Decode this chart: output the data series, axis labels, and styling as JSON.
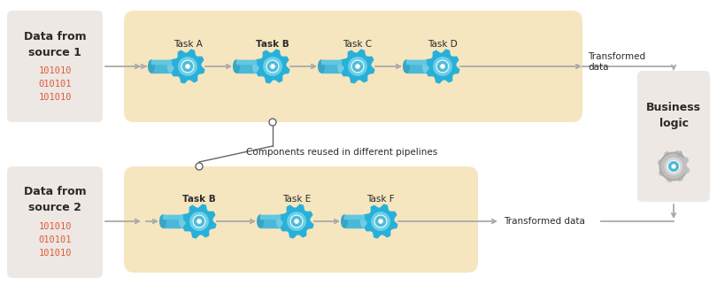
{
  "bg_color": "#ffffff",
  "source_box_color": "#ede8e3",
  "pipeline_box_color": "#f5e6c0",
  "business_box_color": "#ede8e3",
  "pipe_color": "#4db8d4",
  "gear_color": "#29b0d8",
  "arrow_color": "#aaaaaa",
  "text_color_dark": "#2a2a2a",
  "text_color_red": "#e05a3a",
  "source1_title": "Data from\nsource 1",
  "source2_title": "Data from\nsource 2",
  "source1_data": "101010\n010101\n101010",
  "source2_data": "101010\n010101\n101010",
  "business_title": "Business\nlogic",
  "pipeline1_tasks": [
    "Task A",
    "Task B",
    "Task C",
    "Task D"
  ],
  "pipeline1_bold": [
    1
  ],
  "pipeline2_tasks": [
    "Task B",
    "Task E",
    "Task F"
  ],
  "pipeline2_bold": [
    0
  ],
  "transformed_label1": "Transformed\ndata",
  "transformed_label2": "Transformed data",
  "reuse_label": "Components reused in different pipelines"
}
